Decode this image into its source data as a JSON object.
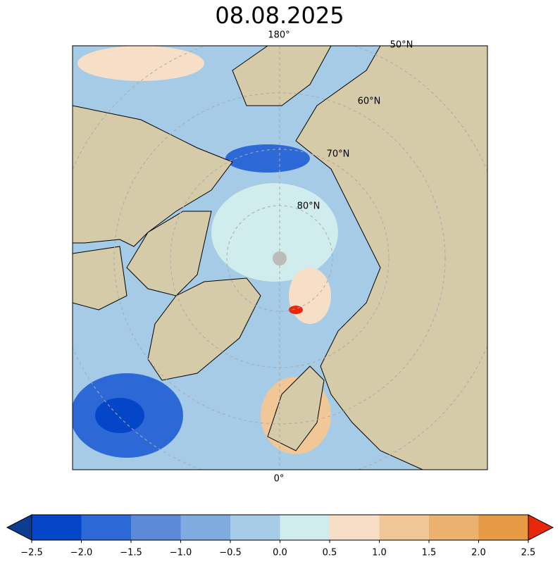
{
  "title": "08.08.2025",
  "map": {
    "labels": [
      "180°",
      "0°",
      "50°N",
      "60°N",
      "70°N",
      "80°N"
    ]
  },
  "colorbar": {
    "ticks": [
      {
        "value": -2.5,
        "label": "−2.5"
      },
      {
        "value": -2.0,
        "label": "−2.0"
      },
      {
        "value": -1.5,
        "label": "−1.5"
      },
      {
        "value": -1.0,
        "label": "−1.0"
      },
      {
        "value": -0.5,
        "label": "−0.5"
      },
      {
        "value": 0,
        "label": "0.0"
      },
      0.5,
      {
        "value": 1,
        "label": "1.0"
      },
      1.5,
      {
        "value": 2,
        "label": "2.0"
      },
      2.5
    ],
    "colors": [
      "#0545c8",
      "#2d69d6",
      "#5a8ad8",
      "#80abdf",
      "#a6cbe6",
      "#d0ecec",
      "#f6dfc6",
      "#f2c797",
      "#ebb16f",
      "#e69a43"
    ],
    "under_color": "#0d3d90",
    "over_color": "#e8260c"
  }
}
